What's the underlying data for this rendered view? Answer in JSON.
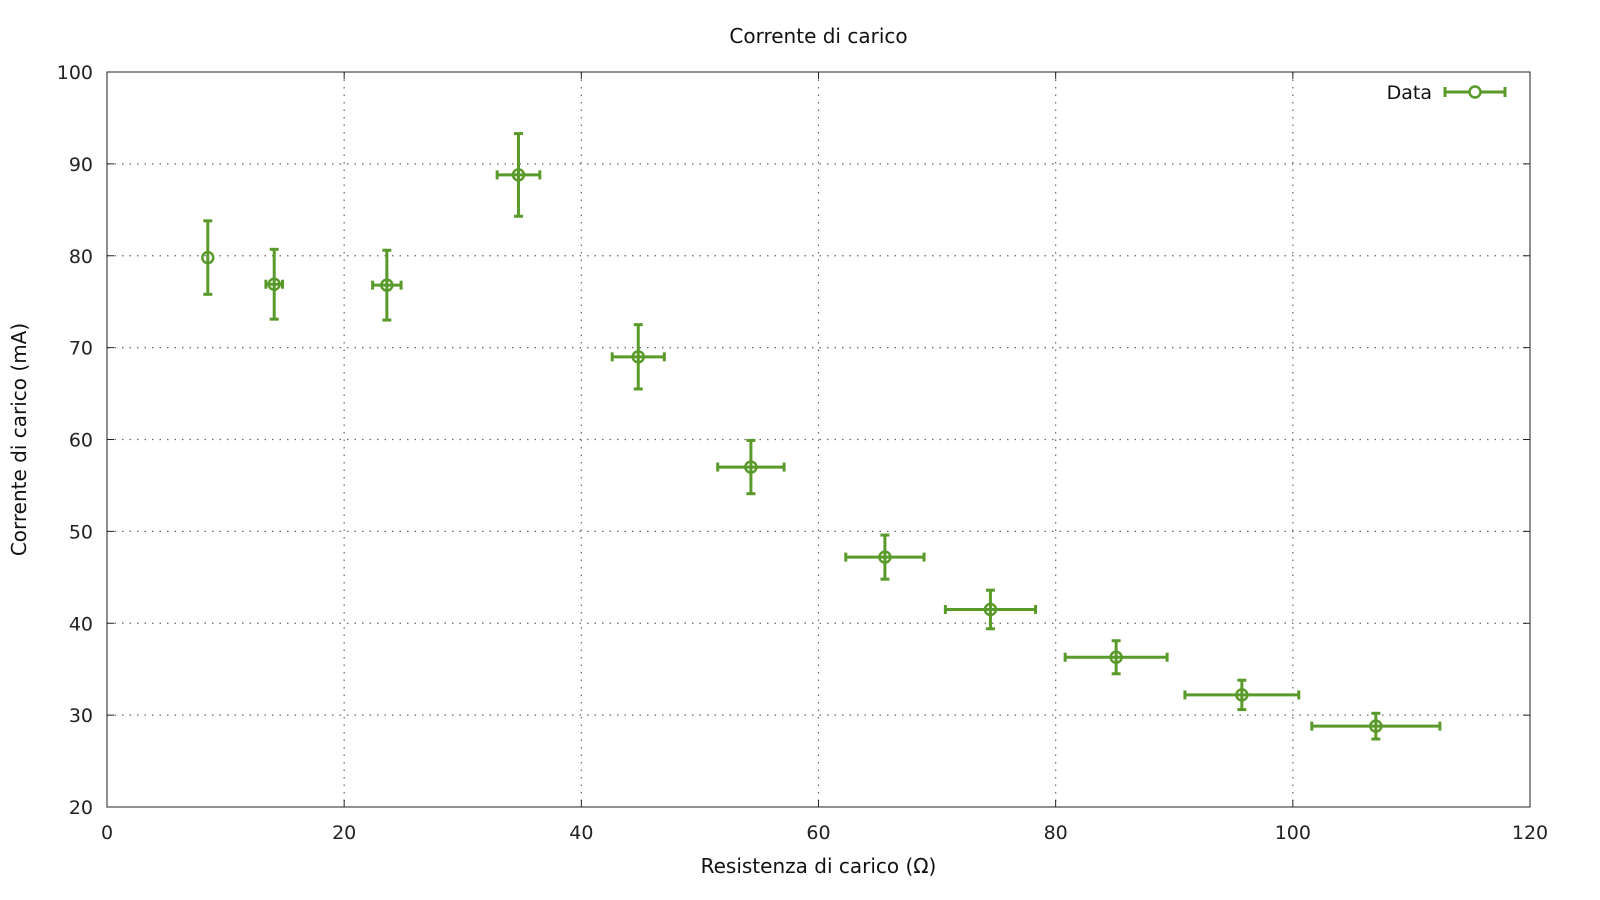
{
  "chart_data": {
    "type": "scatter",
    "title": "Corrente di carico",
    "xlabel": "Resistenza di carico (Ω)",
    "ylabel": "Corrente di carico (mA)",
    "xlim": [
      0,
      120
    ],
    "ylim": [
      20,
      100
    ],
    "xticks": [
      "0",
      "20",
      "40",
      "60",
      "80",
      "100",
      "120"
    ],
    "yticks": [
      "20",
      "30",
      "40",
      "50",
      "60",
      "70",
      "80",
      "90",
      "100"
    ],
    "grid": true,
    "legend": "top-right",
    "series": [
      {
        "name": "Data",
        "color": "#5a9a2a",
        "marker": "open-circle",
        "points": [
          {
            "x": 8.5,
            "y": 79.8,
            "xerr": 0.0,
            "yerr": 4.0
          },
          {
            "x": 14.1,
            "y": 76.9,
            "xerr": 0.7,
            "yerr": 3.8
          },
          {
            "x": 23.6,
            "y": 76.8,
            "xerr": 1.2,
            "yerr": 3.8
          },
          {
            "x": 34.7,
            "y": 88.8,
            "xerr": 1.8,
            "yerr": 4.5
          },
          {
            "x": 44.8,
            "y": 69.0,
            "xerr": 2.2,
            "yerr": 3.5
          },
          {
            "x": 54.3,
            "y": 57.0,
            "xerr": 2.8,
            "yerr": 2.9
          },
          {
            "x": 65.6,
            "y": 47.2,
            "xerr": 3.3,
            "yerr": 2.4
          },
          {
            "x": 74.5,
            "y": 41.5,
            "xerr": 3.8,
            "yerr": 2.1
          },
          {
            "x": 85.1,
            "y": 36.3,
            "xerr": 4.3,
            "yerr": 1.8
          },
          {
            "x": 95.7,
            "y": 32.2,
            "xerr": 4.8,
            "yerr": 1.6
          },
          {
            "x": 107.0,
            "y": 28.8,
            "xerr": 5.4,
            "yerr": 1.4
          }
        ]
      }
    ]
  }
}
